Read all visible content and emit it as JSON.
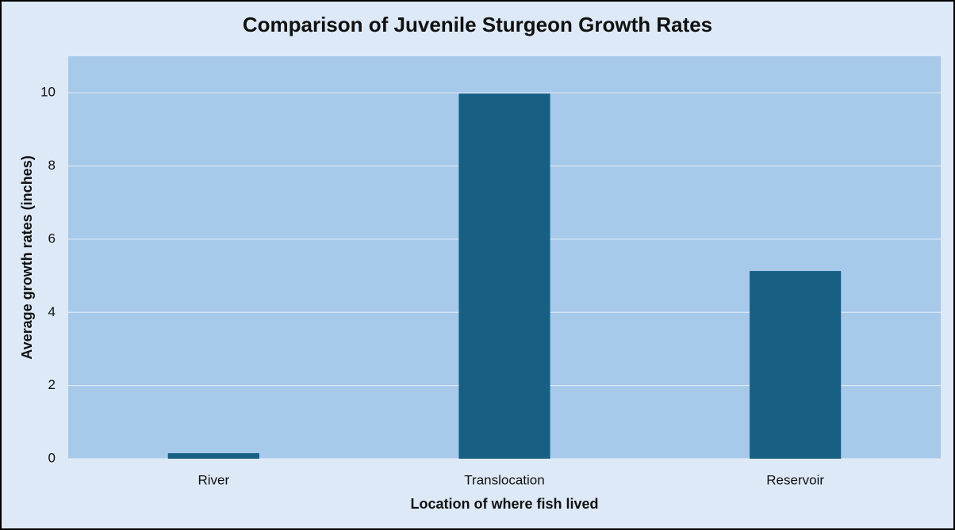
{
  "chart_data": {
    "type": "bar",
    "title": "Comparison of Juvenile Sturgeon Growth Rates",
    "x_label": "Location of where fish lived",
    "y_label": "Average growth rates (inches)",
    "categories": [
      "River",
      "Translocation",
      "Reservoir"
    ],
    "values": [
      0.15,
      9.98,
      5.13
    ],
    "color": "#175f83",
    "ylim": [
      0,
      11
    ],
    "yticks": [
      0,
      2,
      4,
      6,
      8,
      10
    ],
    "grid": true
  }
}
